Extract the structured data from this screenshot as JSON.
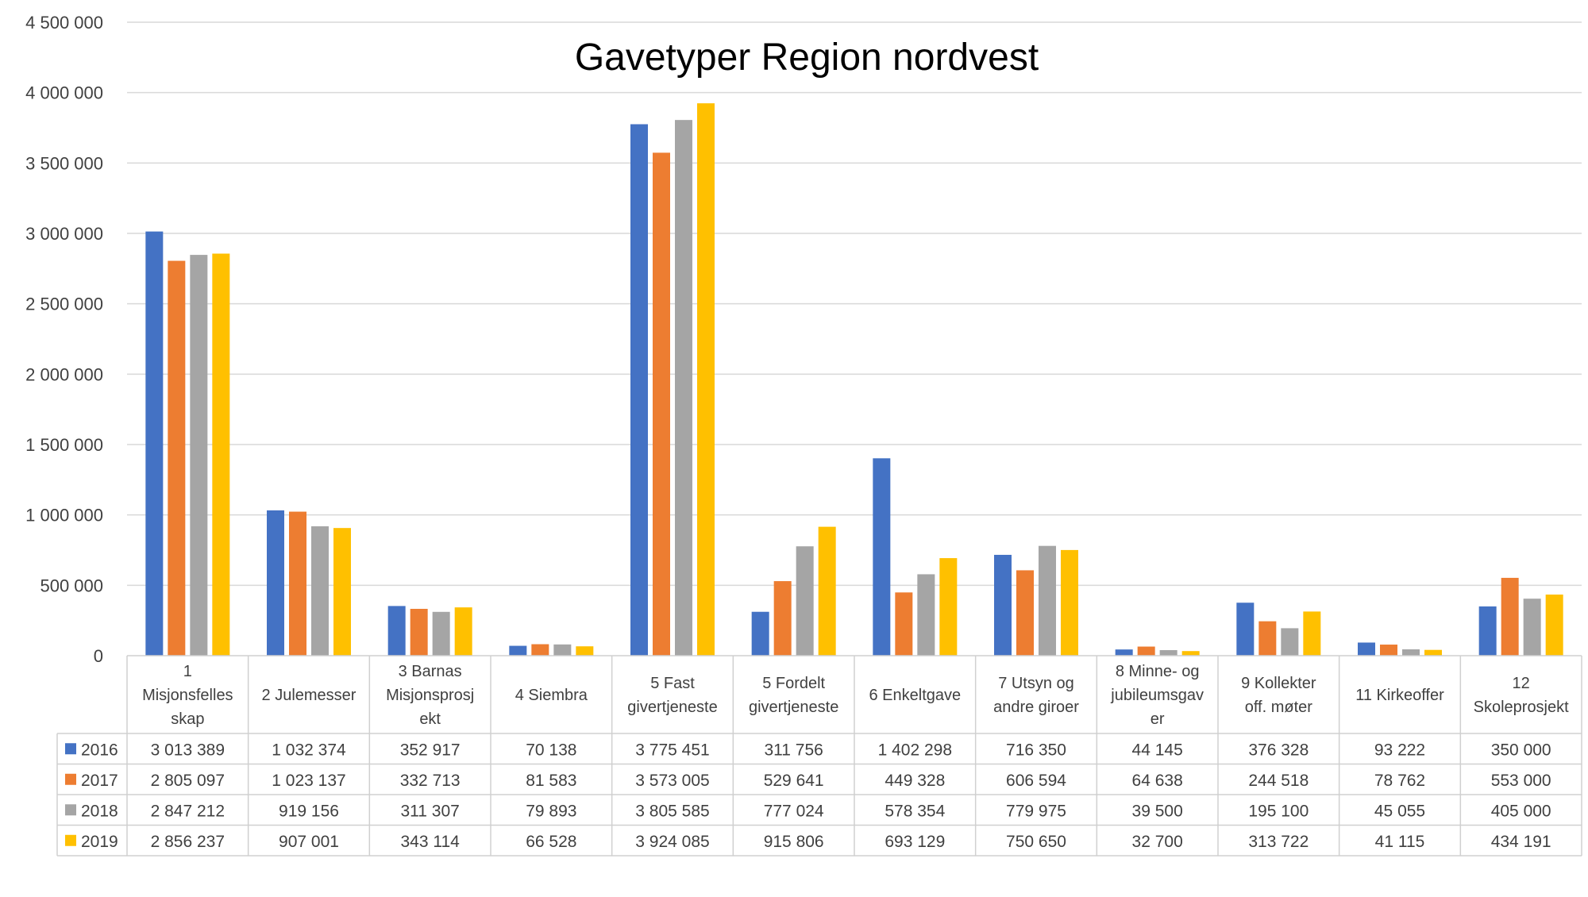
{
  "chart_data": {
    "type": "bar",
    "title": "Gavetyper Region nordvest",
    "xlabel": "",
    "ylabel": "",
    "ylim": [
      0,
      4500000
    ],
    "yticks": [
      {
        "value": 0,
        "label": "0"
      },
      {
        "value": 500000,
        "label": "500 000"
      },
      {
        "value": 1000000,
        "label": "1 000 000"
      },
      {
        "value": 1500000,
        "label": "1 500 000"
      },
      {
        "value": 2000000,
        "label": "2 000 000"
      },
      {
        "value": 2500000,
        "label": "2 500 000"
      },
      {
        "value": 3000000,
        "label": "3 000 000"
      },
      {
        "value": 3500000,
        "label": "3 500 000"
      },
      {
        "value": 4000000,
        "label": "4 000 000"
      },
      {
        "value": 4500000,
        "label": "4 500 000"
      }
    ],
    "grid": true,
    "legend": "data-table",
    "categories": [
      [
        "1",
        "Misjonsfelles",
        "skap"
      ],
      [
        "2 Julemesser"
      ],
      [
        "3 Barnas",
        "Misjonsprosj",
        "ekt"
      ],
      [
        "4 Siembra"
      ],
      [
        "5 Fast",
        "givertjeneste"
      ],
      [
        "5 Fordelt",
        "givertjeneste"
      ],
      [
        "6 Enkeltgave"
      ],
      [
        "7 Utsyn og",
        "andre giroer"
      ],
      [
        "8 Minne- og",
        "jubileumsgav",
        "er"
      ],
      [
        "9 Kollekter",
        "off. møter"
      ],
      [
        "11 Kirkeoffer"
      ],
      [
        "12",
        "Skoleprosjekt"
      ]
    ],
    "series": [
      {
        "name": "2016",
        "color": "#4472C4",
        "values": [
          3013389,
          1032374,
          352917,
          70138,
          3775451,
          311756,
          1402298,
          716350,
          44145,
          376328,
          93222,
          350000
        ],
        "labels": [
          "3 013 389",
          "1 032 374",
          "352 917",
          "70 138",
          "3 775 451",
          "311 756",
          "1 402 298",
          "716 350",
          "44 145",
          "376 328",
          "93 222",
          "350 000"
        ]
      },
      {
        "name": "2017",
        "color": "#ED7D31",
        "values": [
          2805097,
          1023137,
          332713,
          81583,
          3573005,
          529641,
          449328,
          606594,
          64638,
          244518,
          78762,
          553000
        ],
        "labels": [
          "2 805 097",
          "1 023 137",
          "332 713",
          "81 583",
          "3 573 005",
          "529 641",
          "449 328",
          "606 594",
          "64 638",
          "244 518",
          "78 762",
          "553 000"
        ]
      },
      {
        "name": "2018",
        "color": "#A5A5A5",
        "values": [
          2847212,
          919156,
          311307,
          79893,
          3805585,
          777024,
          578354,
          779975,
          39500,
          195100,
          45055,
          405000
        ],
        "labels": [
          "2 847 212",
          "919 156",
          "311 307",
          "79 893",
          "3 805 585",
          "777 024",
          "578 354",
          "779 975",
          "39 500",
          "195 100",
          "45 055",
          "405 000"
        ]
      },
      {
        "name": "2019",
        "color": "#FFC000",
        "values": [
          2856237,
          907001,
          343114,
          66528,
          3924085,
          915806,
          693129,
          750650,
          32700,
          313722,
          41115,
          434191
        ],
        "labels": [
          "2 856 237",
          "907 001",
          "343 114",
          "66 528",
          "3 924 085",
          "915 806",
          "693 129",
          "750 650",
          "32 700",
          "313 722",
          "41 115",
          "434 191"
        ]
      }
    ]
  }
}
